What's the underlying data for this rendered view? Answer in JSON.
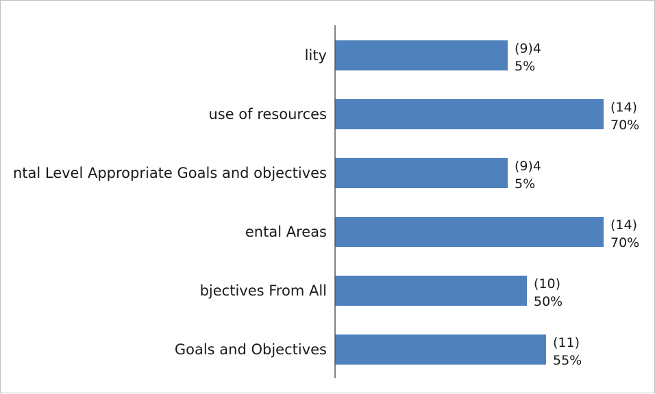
{
  "chart_data": {
    "type": "bar",
    "orientation": "horizontal",
    "categories": [
      "lity",
      "use of resources",
      "ntal Level Appropriate Goals and objectives",
      "ental Areas",
      "bjectives From All",
      "Goals and Objectives"
    ],
    "values": [
      45,
      70,
      45,
      70,
      50,
      55
    ],
    "counts": [
      9,
      14,
      9,
      14,
      10,
      11
    ],
    "data_labels": [
      [
        "(9)4",
        "5%"
      ],
      [
        "(14)",
        "70%"
      ],
      [
        "(9)4",
        "5%"
      ],
      [
        "(14)",
        "70%"
      ],
      [
        "(10)",
        "50%"
      ],
      [
        "(11)",
        "55%"
      ]
    ],
    "bar_color": "#4f81bd",
    "axis_color": "#595959",
    "grid": false,
    "legend": "none"
  }
}
